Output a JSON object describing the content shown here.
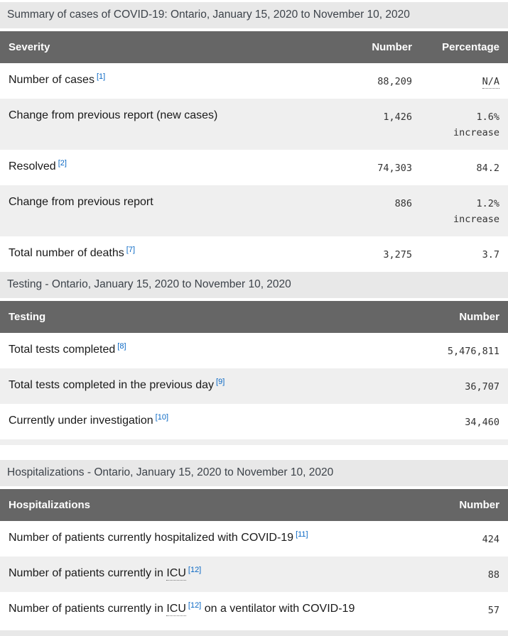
{
  "sections": [
    {
      "heading": "Summary of cases of COVID-19: Ontario, January 15, 2020 to November 10, 2020",
      "columns": [
        "Severity",
        "Number",
        "Percentage"
      ],
      "rows": [
        {
          "label": "Number of cases",
          "ref": "[1]",
          "number": "88,209",
          "pct_abbr": "N/A"
        },
        {
          "label": "Change from previous report (new cases)",
          "number": "1,426",
          "pct": "1.6% increase"
        },
        {
          "label": "Resolved",
          "ref": "[2]",
          "number": "74,303",
          "pct": "84.2"
        },
        {
          "label": "Change from previous report",
          "number": "886",
          "pct": "1.2% increase"
        },
        {
          "label": "Total number of deaths",
          "ref": "[7]",
          "number": "3,275",
          "pct": "3.7"
        }
      ]
    },
    {
      "heading": "Testing - Ontario, January 15, 2020 to November 10, 2020",
      "columns": [
        "Testing",
        "Number"
      ],
      "rows": [
        {
          "label": "Total tests completed",
          "ref": "[8]",
          "number": "5,476,811"
        },
        {
          "label": "Total tests completed in the previous day",
          "ref": "[9]",
          "number": "36,707"
        },
        {
          "label": "Currently under investigation",
          "ref": "[10]",
          "number": "34,460"
        },
        {
          "spacer": true
        }
      ]
    },
    {
      "heading": "Hospitalizations - Ontario, January 15, 2020 to November 10, 2020",
      "columns": [
        "Hospitalizations",
        "Number"
      ],
      "rows": [
        {
          "label": "Number of patients currently hospitalized with COVID-19",
          "ref": "[11]",
          "number": "424"
        },
        {
          "label": "Number of patients currently in",
          "abbr": "ICU",
          "ref": "[12]",
          "number": "88"
        },
        {
          "label": "Number of patients currently in",
          "abbr": "ICU",
          "ref": "[12]",
          "label_after": "on a ventilator with COVID-19",
          "number": "57"
        }
      ]
    }
  ],
  "colors": {
    "table_header_bg": "#666666",
    "section_heading_bg": "#e8e8e8",
    "row_stripe_bg": "#efefef",
    "footnote_link_blue": "#0a68c4"
  }
}
